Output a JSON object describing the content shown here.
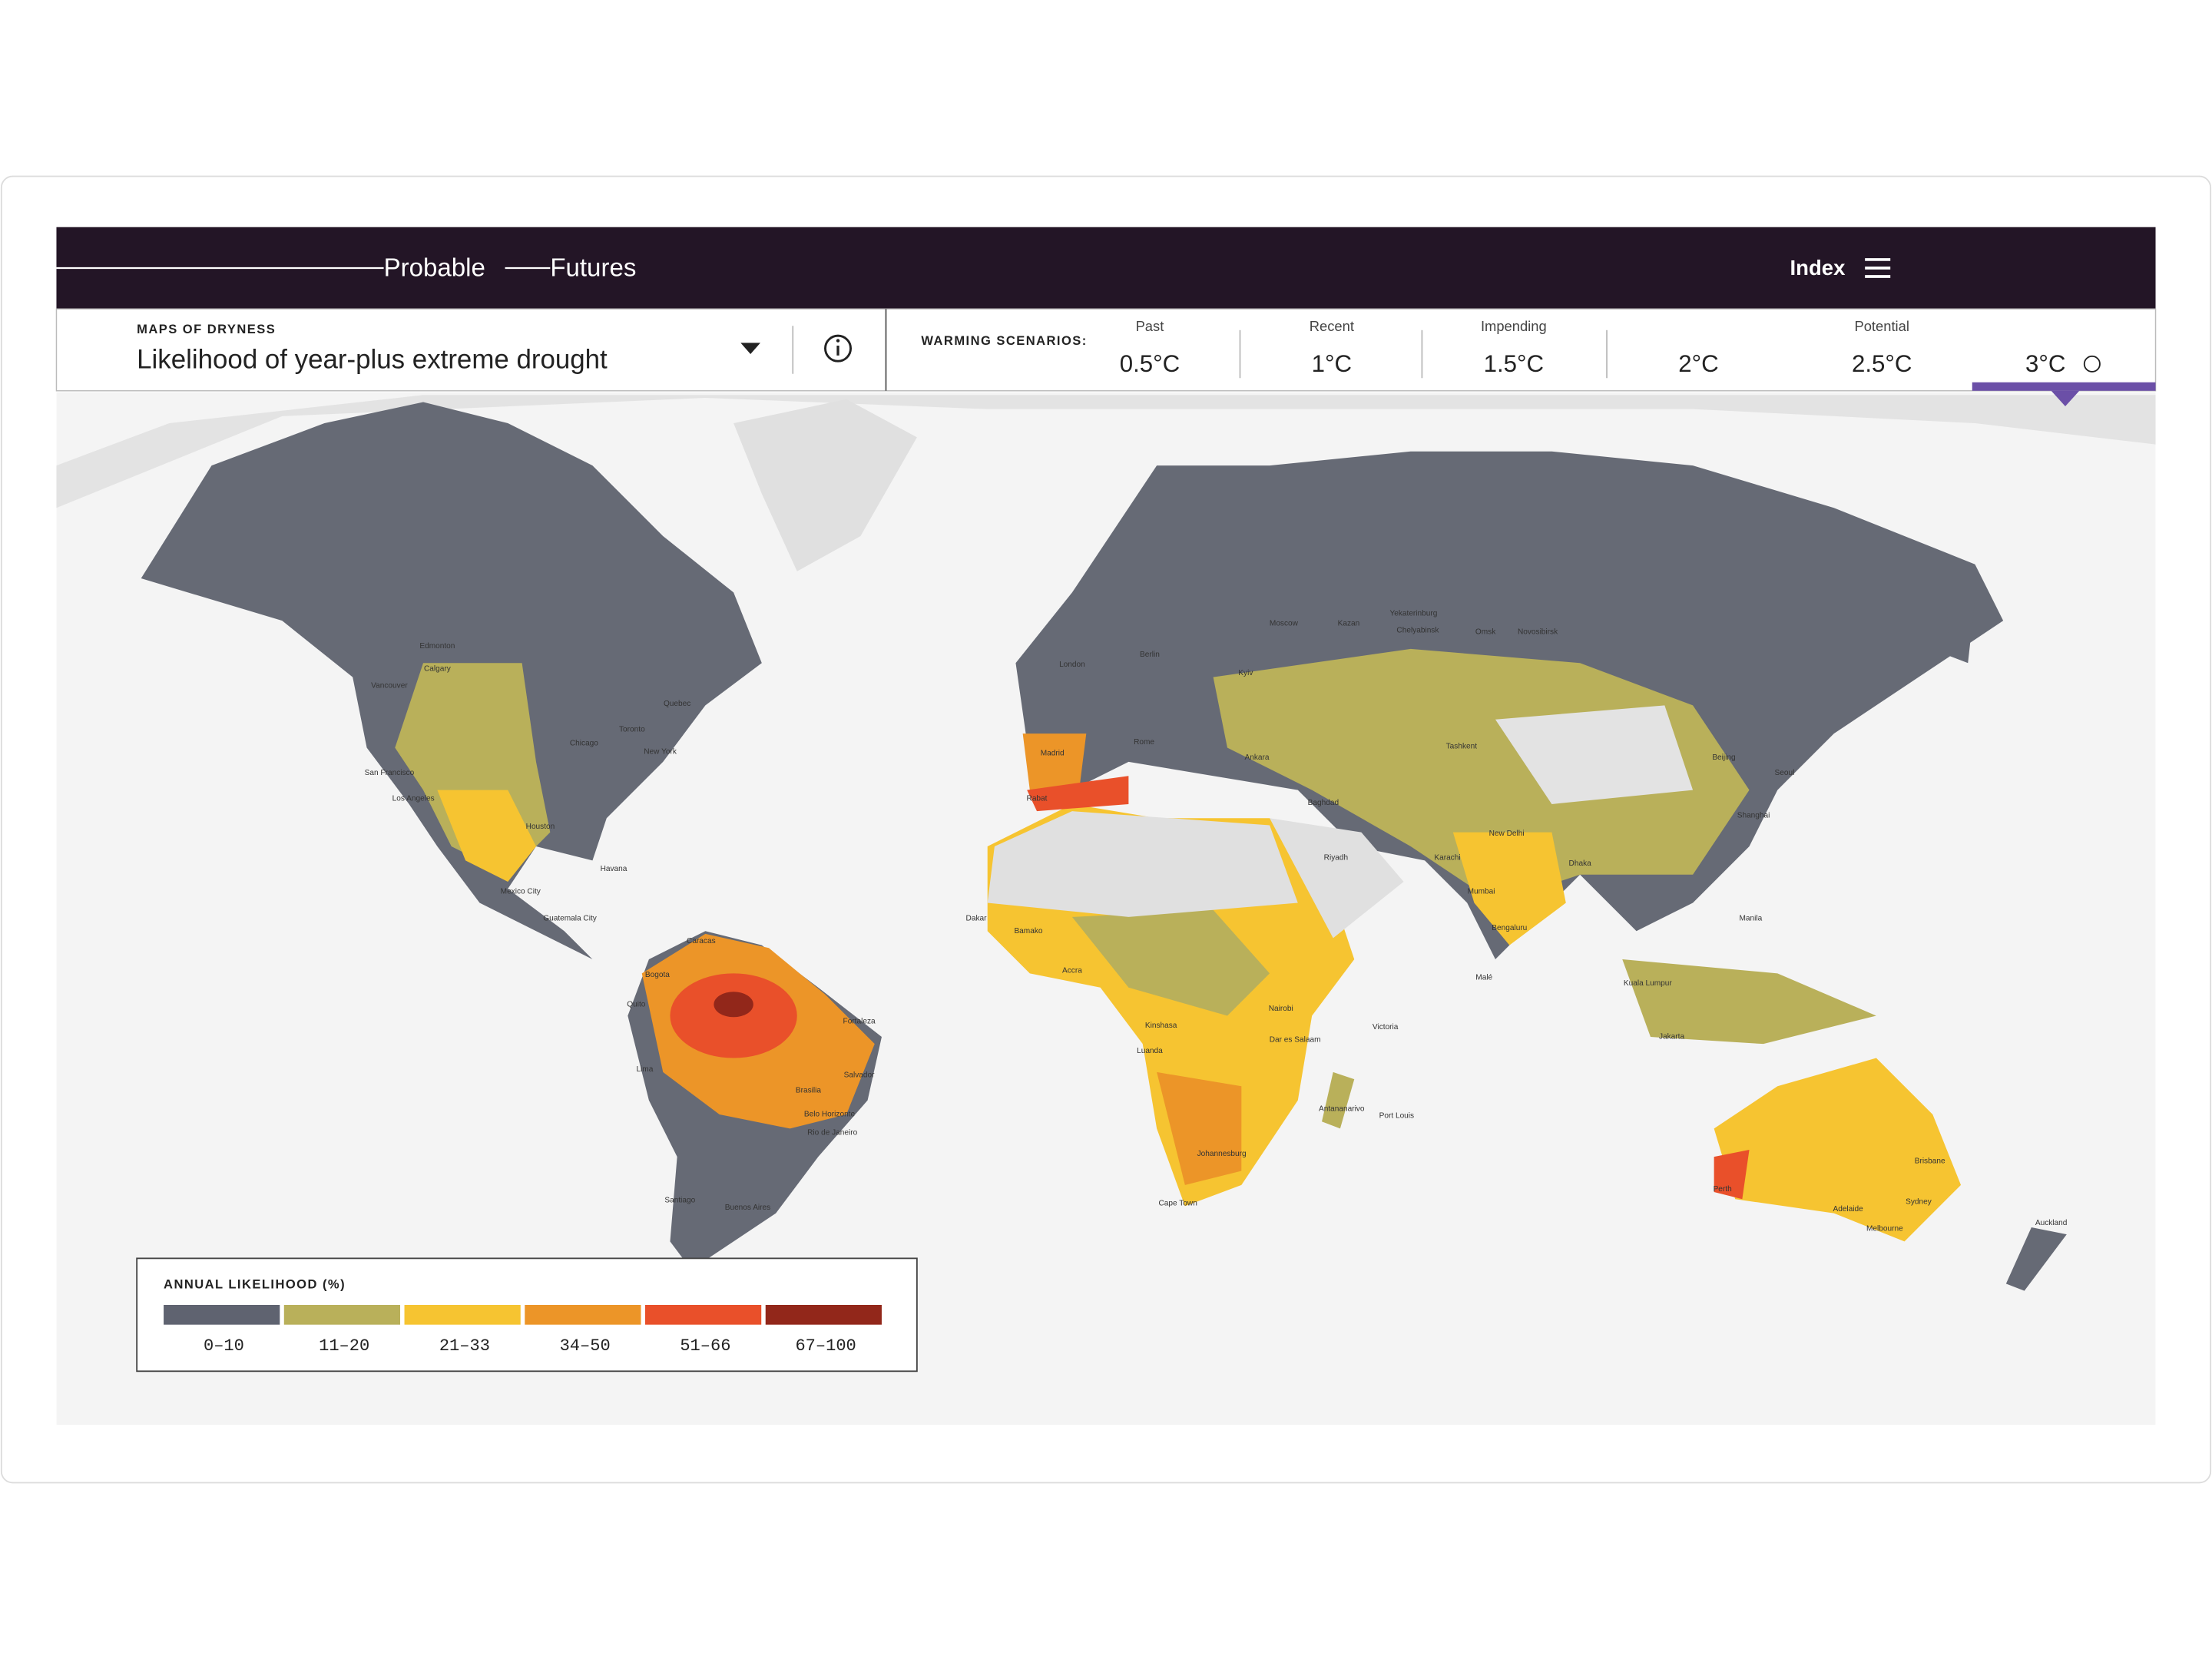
{
  "header": {
    "brand": [
      "Probable",
      "Futures"
    ],
    "menu": "Index"
  },
  "selector": {
    "eyebrow": "MAPS OF DRYNESS",
    "title": "Likelihood of year-plus extreme drought"
  },
  "scenarios": {
    "heading": "WARMING SCENARIOS:",
    "items": [
      {
        "label": "Past",
        "value": "0.5°C"
      },
      {
        "label": "Recent",
        "value": "1°C"
      },
      {
        "label": "Impending",
        "value": "1.5°C"
      },
      {
        "value": "2°C"
      },
      {
        "label": "Potential",
        "value": "2.5°C"
      },
      {
        "value": "3°C",
        "selected": true
      }
    ]
  },
  "cities": [
    "Edmonton",
    "Calgary",
    "Vancouver",
    "Chicago",
    "Toronto",
    "Quebec",
    "New York",
    "San Francisco",
    "Los Angeles",
    "Houston",
    "Havana",
    "Mexico City",
    "Guatemala City",
    "Caracas",
    "Bogota",
    "Quito",
    "Fortaleza",
    "Lima",
    "Salvador",
    "Brasilia",
    "Belo Horizonte",
    "Rio de Janeiro",
    "Santiago",
    "Buenos Aires",
    "London",
    "Berlin",
    "Madrid",
    "Rome",
    "Rabat",
    "Kyiv",
    "Moscow",
    "Kazan",
    "Yekaterinburg",
    "Chelyabinsk",
    "Omsk",
    "Novosibirsk",
    "Ankara",
    "Baghdad",
    "Riyadh",
    "Tashkent",
    "Beijing",
    "Seoul",
    "Shanghai",
    "Karachi",
    "New Delhi",
    "Dhaka",
    "Mumbai",
    "Bengaluru",
    "Malé",
    "Manila",
    "Kuala Lumpur",
    "Jakarta",
    "Dakar",
    "Bamako",
    "Accra",
    "Nairobi",
    "Kinshasa",
    "Luanda",
    "Dar es Salaam",
    "Victoria",
    "Antananarivo",
    "Port Louis",
    "Johannesburg",
    "Cape Town",
    "Perth",
    "Adelaide",
    "Brisbane",
    "Sydney",
    "Melbourne",
    "Auckland"
  ],
  "legend": {
    "title": "ANNUAL LIKELIHOOD (%)",
    "bins": [
      {
        "label": "0–10",
        "color": "#5f6370"
      },
      {
        "label": "11–20",
        "color": "#b9b05a"
      },
      {
        "label": "21–33",
        "color": "#f6c431"
      },
      {
        "label": "34–50",
        "color": "#ec9528"
      },
      {
        "label": "51–66",
        "color": "#e9502a"
      },
      {
        "label": "67–100",
        "color": "#92271a"
      }
    ]
  }
}
